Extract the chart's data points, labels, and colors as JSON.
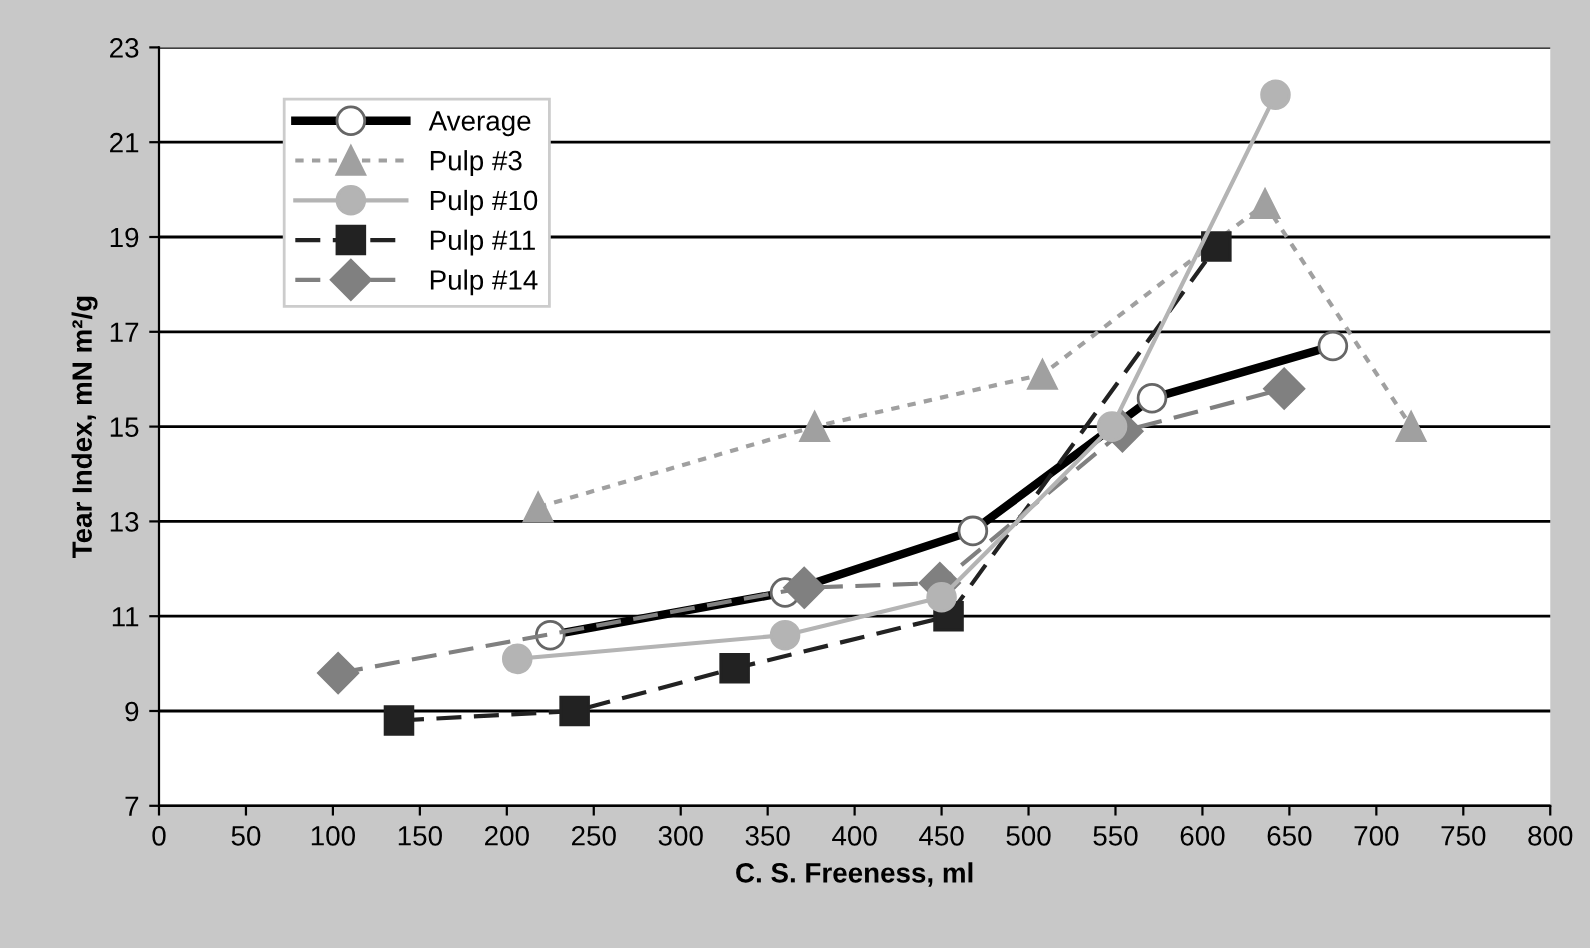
{
  "chart_data": {
    "type": "line",
    "xlabel": "C. S. Freeness, ml",
    "ylabel": "Tear Index, mN m²/g",
    "xlim": [
      0,
      800
    ],
    "xticks": [
      0,
      50,
      100,
      150,
      200,
      250,
      300,
      350,
      400,
      450,
      500,
      550,
      600,
      650,
      700,
      750,
      800
    ],
    "ylim": [
      7,
      23
    ],
    "yticks": [
      7,
      9,
      11,
      13,
      15,
      17,
      19,
      21,
      23
    ],
    "grid": "y",
    "legend": "top left",
    "series": [
      {
        "name": "Average",
        "color": "#000000",
        "marker": "circle",
        "line_style": "solid",
        "x": [
          225,
          360,
          468,
          571,
          675
        ],
        "values": [
          10.6,
          11.5,
          12.8,
          15.6,
          16.7
        ]
      },
      {
        "name": "Pulp #3",
        "color": "#a0a0a0",
        "marker": "triangle",
        "line_style": "dotted",
        "x": [
          218,
          377,
          508,
          636,
          720
        ],
        "values": [
          13.3,
          15.0,
          16.1,
          19.7,
          15.0
        ]
      },
      {
        "name": "Pulp #10",
        "color": "#b4b4b4",
        "marker": "circle",
        "line_style": "solid",
        "x": [
          206,
          360,
          450,
          548,
          642
        ],
        "values": [
          10.1,
          10.6,
          11.4,
          15.0,
          22.0
        ]
      },
      {
        "name": "Pulp #11",
        "color": "#222222",
        "marker": "square",
        "line_style": "dashed",
        "x": [
          138,
          239,
          331,
          454,
          608
        ],
        "values": [
          8.8,
          9.0,
          9.9,
          11.0,
          18.8
        ]
      },
      {
        "name": "Pulp #14",
        "color": "#808080",
        "marker": "diamond",
        "line_style": "dashed",
        "x": [
          103,
          371,
          449,
          554,
          647
        ],
        "values": [
          9.8,
          11.6,
          11.7,
          14.9,
          15.8
        ]
      }
    ]
  }
}
